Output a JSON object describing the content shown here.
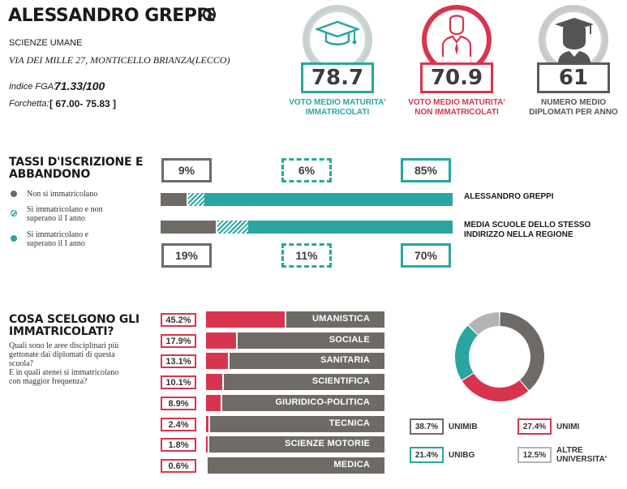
{
  "header": {
    "school_name": "ALESSANDRO GREPPI",
    "school_type": "SCIENZE UMANE",
    "address": "VIA DEI MILLE 27, MONTICELLO BRIANZA(LECCO)",
    "fga_label": "Indice FGA:",
    "fga_value": "71.33/100",
    "fork_label": "Forchetta:",
    "fork_value": "[ 67.00- 75.83 ]",
    "icons": [
      "globe-icon",
      "graduation-cap-icon",
      "person-icon",
      "graduate-head-icon"
    ]
  },
  "stats": [
    {
      "value": "78.7",
      "label_line1": "VOTO MEDIO MATURITA'",
      "label_line2": "IMMATRICOLATI",
      "color": "#2aa5a0"
    },
    {
      "value": "70.9",
      "label_line1": "VOTO MEDIO MATURITA'",
      "label_line2": "NON IMMATRICOLATI",
      "color": "#d9344e"
    },
    {
      "value": "61",
      "label_line1": "NUMERO MEDIO",
      "label_line2": "DIPLOMATI PER ANNO",
      "color": "#5a5a5a"
    }
  ],
  "rates": {
    "title_line1": "TASSI D'ISCRIZIONE E",
    "title_line2": "ABBANDONO",
    "legend": [
      {
        "line1": "Non si immatricolano",
        "line2": "",
        "color": "#6e6b66"
      },
      {
        "line1": "Si immatricolano e non",
        "line2": "superano il I anno",
        "color": "#2aa5a0"
      },
      {
        "line1": "Si immatricolano e",
        "line2": "superano il I anno",
        "color": "#2aa5a0"
      }
    ],
    "school": {
      "label": "ALESSANDRO GREPPI",
      "label_line2": "",
      "not_enrolled": 9,
      "dropout": 6,
      "continue": 85,
      "not_enrolled_text": "9%",
      "dropout_text": "6%",
      "continue_text": "85%"
    },
    "region": {
      "label": "MEDIA SCUOLE DELLO STESSO",
      "label_line2": "INDIRIZZO NELLA REGIONE",
      "not_enrolled": 19,
      "dropout": 11,
      "continue": 70,
      "not_enrolled_text": "19%",
      "dropout_text": "11%",
      "continue_text": "70%"
    }
  },
  "choices": {
    "title_line1": "COSA SCELGONO GLI",
    "title_line2": "IMMATRICOLATI?",
    "sub_lines": [
      "Quali sono le aree disciplinari più",
      "gettonate dai diplomati di questa",
      "scuola?",
      "E in quali atenei si immatricolano",
      "con maggior frequenza?"
    ],
    "areas": [
      {
        "name": "UMANISTICA",
        "pct": 45.2,
        "pct_text": "45.2%"
      },
      {
        "name": "SOCIALE",
        "pct": 17.9,
        "pct_text": "17.9%"
      },
      {
        "name": "SANITARIA",
        "pct": 13.1,
        "pct_text": "13.1%"
      },
      {
        "name": "SCIENTIFICA",
        "pct": 10.1,
        "pct_text": "10.1%"
      },
      {
        "name": "GIURIDICO-POLITICA",
        "pct": 8.9,
        "pct_text": "8.9%"
      },
      {
        "name": "TECNICA",
        "pct": 2.4,
        "pct_text": "2.4%"
      },
      {
        "name": "SCIENZE MOTORIE",
        "pct": 1.8,
        "pct_text": "1.8%"
      },
      {
        "name": "MEDICA",
        "pct": 0.6,
        "pct_text": "0.6%"
      }
    ],
    "universities": [
      {
        "name_line1": "UNIMIB",
        "name_line2": "",
        "pct": 38.7,
        "pct_text": "38.7%",
        "color": "#6e6b66"
      },
      {
        "name_line1": "UNIMI",
        "name_line2": "",
        "pct": 27.4,
        "pct_text": "27.4%",
        "color": "#d9344e"
      },
      {
        "name_line1": "UNIBG",
        "name_line2": "",
        "pct": 21.4,
        "pct_text": "21.4%",
        "color": "#2aa5a0"
      },
      {
        "name_line1": "ALTRE",
        "name_line2": "UNIVERSITA'",
        "pct": 12.5,
        "pct_text": "12.5%",
        "color": "#b3b3b3"
      }
    ]
  },
  "chart_data": [
    {
      "type": "bar",
      "categories": [
        "ALESSANDRO GREPPI",
        "MEDIA SCUOLE DELLO STESSO INDIRIZZO NELLA REGIONE"
      ],
      "series": [
        {
          "name": "Non si immatricolano",
          "values": [
            9,
            19
          ]
        },
        {
          "name": "Si immatricolano e non superano il I anno",
          "values": [
            6,
            11
          ]
        },
        {
          "name": "Si immatricolano e superano il I anno",
          "values": [
            85,
            70
          ]
        }
      ],
      "title": "TASSI D'ISCRIZIONE E ABBANDONO"
    },
    {
      "type": "bar",
      "categories": [
        "UMANISTICA",
        "SOCIALE",
        "SANITARIA",
        "SCIENTIFICA",
        "GIURIDICO-POLITICA",
        "TECNICA",
        "SCIENZE MOTORIE",
        "MEDICA"
      ],
      "values": [
        45.2,
        17.9,
        13.1,
        10.1,
        8.9,
        2.4,
        1.8,
        0.6
      ],
      "title": "COSA SCELGONO GLI IMMATRICOLATI?"
    },
    {
      "type": "pie",
      "categories": [
        "UNIMIB",
        "UNIMI",
        "UNIBG",
        "ALTRE UNIVERSITA'"
      ],
      "values": [
        38.7,
        27.4,
        21.4,
        12.5
      ]
    }
  ]
}
